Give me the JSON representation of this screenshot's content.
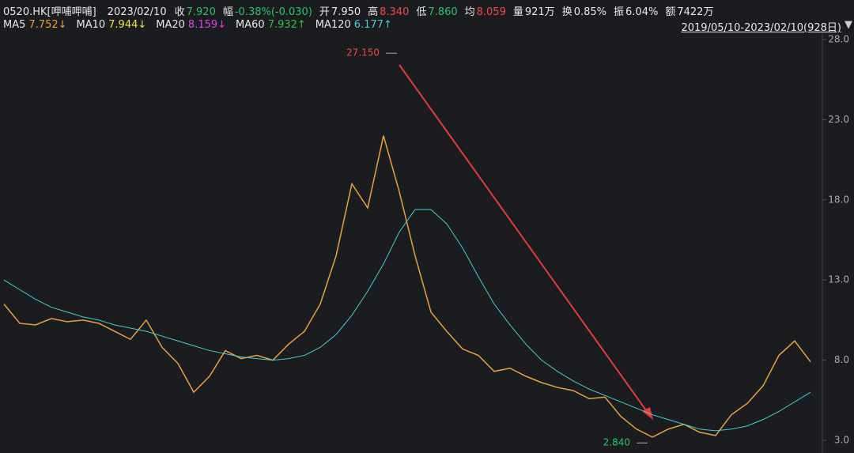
{
  "header": {
    "symbol": "0520.HK[呷哺呷哺]",
    "date": "2023/02/10",
    "fields": [
      {
        "label": "收",
        "value": "7.920",
        "color": "#27c46b"
      },
      {
        "label": "幅",
        "value": "-0.38%(-0.030)",
        "color": "#27c46b"
      },
      {
        "label": "开",
        "value": "7.950",
        "color": "#e8e8e8"
      },
      {
        "label": "高",
        "value": "8.340",
        "color": "#f04848"
      },
      {
        "label": "低",
        "value": "7.860",
        "color": "#27c46b"
      },
      {
        "label": "均",
        "value": "8.059",
        "color": "#f04848"
      },
      {
        "label": "量",
        "value": "921万",
        "color": "#e8e8e8"
      },
      {
        "label": "换",
        "value": "0.85%",
        "color": "#e8e8e8"
      },
      {
        "label": "振",
        "value": "6.04%",
        "color": "#e8e8e8"
      },
      {
        "label": "额",
        "value": "7422万",
        "color": "#e8e8e8"
      }
    ],
    "ma": [
      {
        "name": "MA5",
        "label": "7.752↓",
        "color": "#f0a030"
      },
      {
        "name": "MA10",
        "label": "7.944↓",
        "color": "#f0e040"
      },
      {
        "name": "MA20",
        "label": "8.159↓",
        "color": "#e040e0"
      },
      {
        "name": "MA60",
        "label": "7.932↑",
        "color": "#30c040"
      },
      {
        "name": "MA120",
        "label": "6.177↑",
        "color": "#40d0d0"
      }
    ],
    "range": "2019/05/10-2023/02/10(928日)"
  },
  "chart_data": {
    "type": "line",
    "ylim": [
      3,
      28
    ],
    "yticks": [
      {
        "value": 3,
        "label": "3.0"
      },
      {
        "value": 8,
        "label": "8.0"
      },
      {
        "value": 13,
        "label": "13.0"
      },
      {
        "value": 18,
        "label": "18.0"
      },
      {
        "value": 23,
        "label": "23.0"
      },
      {
        "value": 28,
        "label": "28.0"
      }
    ],
    "series": [
      {
        "name": "收",
        "color": "#e8a23a",
        "values": [
          11.5,
          10.3,
          10.2,
          10.6,
          10.4,
          10.5,
          10.3,
          9.8,
          9.3,
          10.5,
          8.8,
          7.8,
          6.0,
          7.0,
          8.6,
          8.1,
          8.3,
          8.0,
          9.0,
          9.8,
          11.5,
          14.5,
          19.0,
          17.5,
          22.0,
          18.5,
          14.5,
          11.0,
          9.8,
          8.7,
          8.3,
          7.3,
          7.5,
          7.0,
          6.6,
          6.3,
          6.1,
          5.6,
          5.7,
          4.5,
          3.7,
          3.2,
          3.7,
          4.0,
          3.5,
          3.3,
          4.6,
          5.3,
          6.4,
          8.3,
          9.2,
          7.9
        ]
      },
      {
        "name": "MA120",
        "color": "#40d0d0",
        "values": [
          13.0,
          12.4,
          11.8,
          11.3,
          11.0,
          10.7,
          10.5,
          10.2,
          10.0,
          9.8,
          9.5,
          9.2,
          8.9,
          8.6,
          8.4,
          8.2,
          8.1,
          8.0,
          8.1,
          8.3,
          8.8,
          9.6,
          10.8,
          12.3,
          14.0,
          16.0,
          17.4,
          17.4,
          16.5,
          15.0,
          13.2,
          11.5,
          10.2,
          9.0,
          8.0,
          7.3,
          6.7,
          6.2,
          5.8,
          5.4,
          5.0,
          4.6,
          4.3,
          4.0,
          3.7,
          3.6,
          3.7,
          3.9,
          4.3,
          4.8,
          5.4,
          6.0
        ]
      }
    ],
    "annotations": [
      {
        "text": "27.150",
        "value": 27.15,
        "color": "#f04848"
      },
      {
        "text": "2.840",
        "value": 2.84,
        "color": "#27c46b"
      }
    ]
  }
}
